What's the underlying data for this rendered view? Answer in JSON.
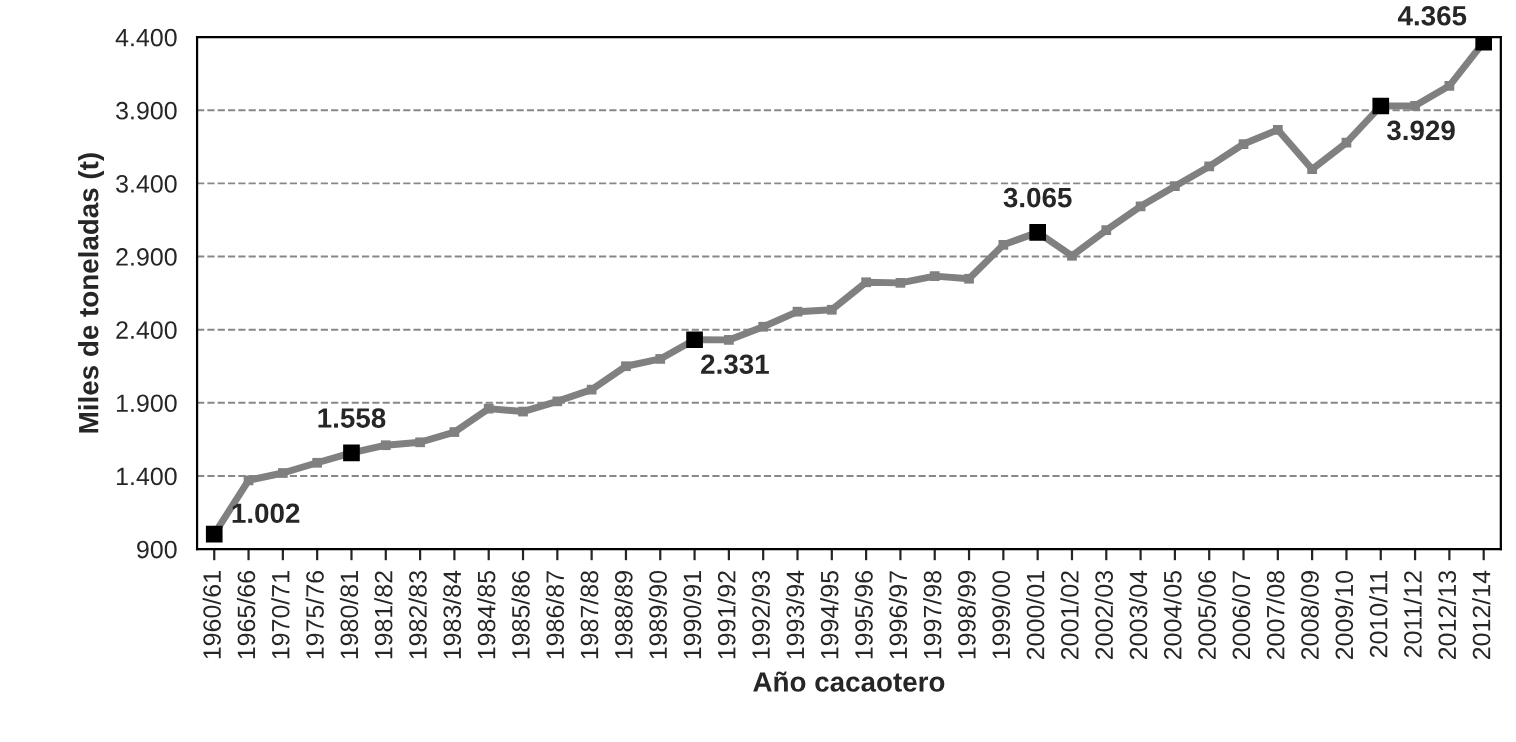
{
  "chart_data": {
    "type": "line",
    "xlabel": "Año cacaotero",
    "ylabel": "Miles de toneladas (t)",
    "categories": [
      "1960/61",
      "1965/66",
      "1970/71",
      "1975/76",
      "1980/81",
      "1981/82",
      "1982/83",
      "1983/84",
      "1984/85",
      "1985/86",
      "1986/87",
      "1987/88",
      "1988/89",
      "1989/90",
      "1990/91",
      "1991/92",
      "1992/93",
      "1993/94",
      "1994/95",
      "1995/96",
      "1996/97",
      "1997/98",
      "1998/99",
      "1999/00",
      "2000/01",
      "2001/02",
      "2002/03",
      "2003/04",
      "2004/05",
      "2005/06",
      "2006/07",
      "2007/08",
      "2008/09",
      "2009/10",
      "2010/11",
      "2011/12",
      "2012/13",
      "2012/14"
    ],
    "series": [
      {
        "color": "#808080",
        "values": [
          1002,
          1370,
          1420,
          1490,
          1558,
          1610,
          1630,
          1700,
          1860,
          1840,
          1910,
          1990,
          2150,
          2200,
          2331,
          2330,
          2420,
          2523,
          2536,
          2724,
          2720,
          2766,
          2748,
          2980,
          3065,
          2905,
          3080,
          3243,
          3381,
          3516,
          3669,
          3766,
          3497,
          3678,
          3929,
          3930,
          4067,
          4365
        ],
        "value_labels": [
          "1.002",
          null,
          null,
          null,
          "1.558",
          null,
          null,
          null,
          null,
          null,
          null,
          null,
          null,
          null,
          "2.331",
          null,
          null,
          null,
          null,
          null,
          null,
          null,
          null,
          null,
          "3.065",
          null,
          null,
          null,
          null,
          null,
          null,
          null,
          null,
          null,
          "3.929",
          null,
          null,
          "4.365"
        ]
      }
    ],
    "ylim": [
      900,
      4400
    ],
    "yticks": [
      {
        "value": 900,
        "label": "900"
      },
      {
        "value": 1400,
        "label": "1.400"
      },
      {
        "value": 1900,
        "label": "1.900"
      },
      {
        "value": 2400,
        "label": "2.400"
      },
      {
        "value": 2900,
        "label": "2.900"
      },
      {
        "value": 3400,
        "label": "3.400"
      },
      {
        "value": 3900,
        "label": "3.900"
      },
      {
        "value": 4400,
        "label": "4.400"
      }
    ],
    "grid": "y",
    "marker": "square",
    "line_style": "solid",
    "legend": false
  }
}
